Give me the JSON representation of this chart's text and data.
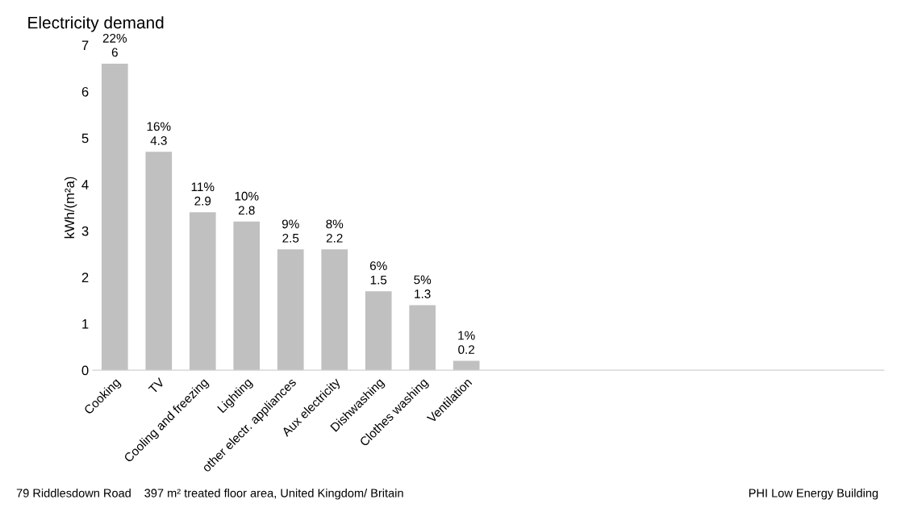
{
  "chart_data": {
    "type": "bar",
    "title": "Electricity demand",
    "ylabel": "kWh/(m²a)",
    "categories": [
      "Cooking",
      "TV",
      "Cooling and freezing",
      "Lighting",
      "other electr. appliances",
      "Aux electricity",
      "Dishwashing",
      "Clothes washing",
      "Ventilation",
      null,
      null,
      null,
      null,
      null,
      null,
      null,
      null,
      null
    ],
    "values": [
      6.6,
      4.7,
      3.4,
      3.2,
      2.6,
      2.6,
      1.7,
      1.4,
      0.2,
      null,
      null,
      null,
      null,
      null,
      null,
      null,
      null,
      null
    ],
    "color": "#c0c0c0",
    "ylim": [
      0,
      7
    ],
    "yticks": [
      0,
      1,
      2,
      3,
      4,
      5,
      6,
      7
    ],
    "grid": false,
    "legend": false,
    "annotations": [
      "79 Riddlesdown Road",
      "397 m² treated floor area, United Kingdom/ Britain",
      "PHI Low Energy Building",
      "22%\n6",
      "16%\n4.3",
      "11%\n2.9",
      "10%\n2.8",
      "9%\n2.5",
      "8%\n2.2",
      "6%\n1.5",
      "5%\n1.3",
      "1%\n0.2"
    ]
  }
}
